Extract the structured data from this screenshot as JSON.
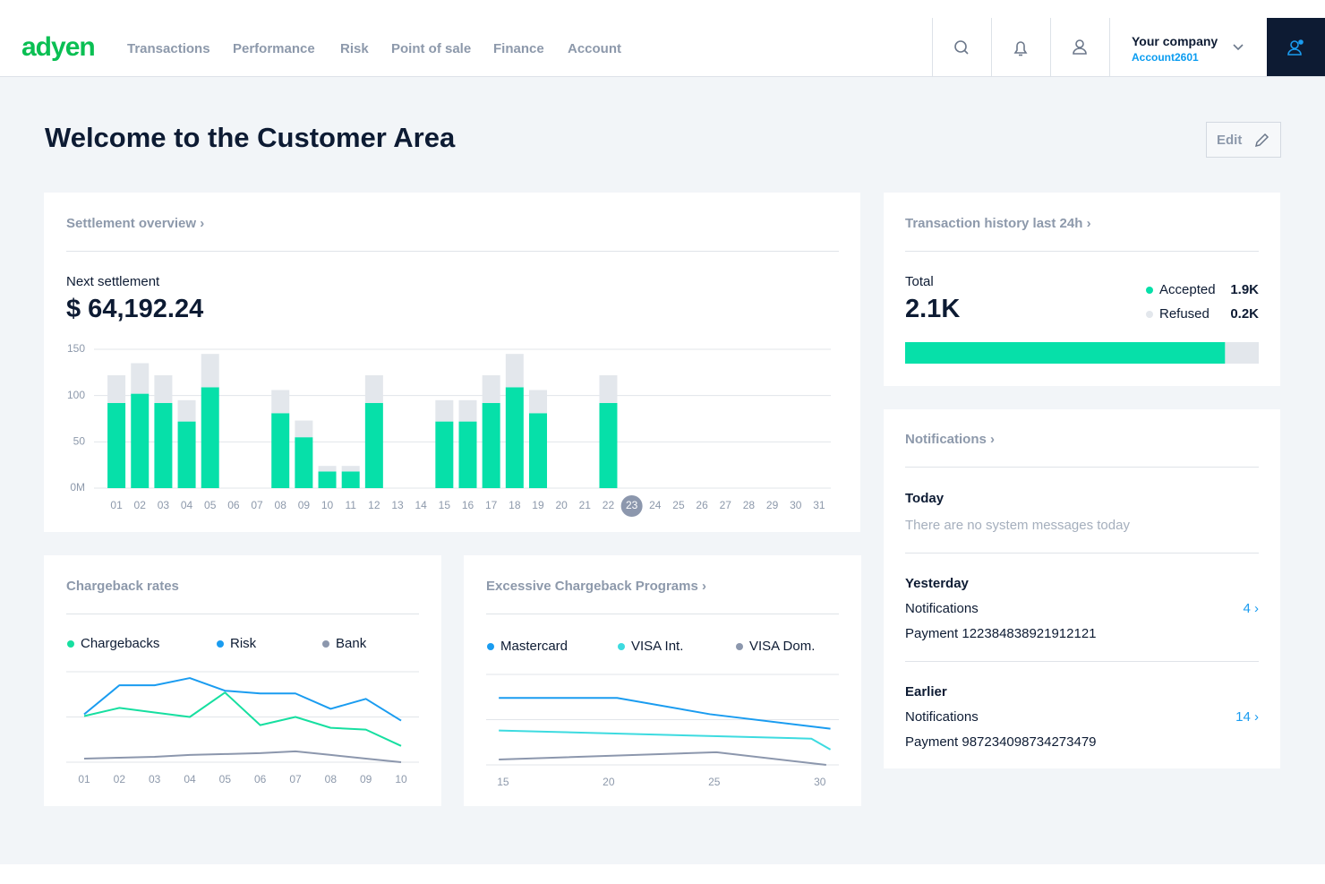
{
  "nav": {
    "logo": "adyen",
    "items": [
      "Transactions",
      "Performance",
      "Risk",
      "Point of sale",
      "Finance",
      "Account"
    ],
    "company": "Your company",
    "account": "Account2601"
  },
  "page_title": "Welcome to the Customer Area",
  "edit_button": "Edit",
  "settlement": {
    "heading": "Settlement overview ›",
    "label": "Next settlement",
    "amount": "$ 64,192.24",
    "chart_data": {
      "type": "bar",
      "categories": [
        "01",
        "02",
        "03",
        "04",
        "05",
        "06",
        "07",
        "08",
        "09",
        "10",
        "11",
        "12",
        "13",
        "14",
        "15",
        "16",
        "17",
        "18",
        "19",
        "20",
        "21",
        "22",
        "23",
        "24",
        "25",
        "26",
        "27",
        "28",
        "29",
        "30",
        "31"
      ],
      "series": [
        {
          "color": "#06e0a9",
          "values": [
            92,
            102,
            92,
            72,
            109,
            0,
            0,
            81,
            55,
            18,
            18,
            92,
            0,
            0,
            72,
            72,
            92,
            109,
            81,
            0,
            0,
            92,
            0,
            0,
            0,
            0,
            0,
            0,
            0,
            0,
            0
          ]
        },
        {
          "color": "#e3e7ec",
          "values": [
            30,
            33,
            30,
            23,
            36,
            0,
            0,
            25,
            18,
            6,
            6,
            30,
            0,
            0,
            23,
            23,
            30,
            36,
            25,
            0,
            0,
            30,
            0,
            0,
            0,
            0,
            0,
            0,
            0,
            0,
            0
          ]
        }
      ],
      "ylim": [
        0,
        150
      ],
      "yticks": [
        {
          "value": 0,
          "label": "0M"
        },
        50,
        100,
        150
      ],
      "grid": true,
      "highlight": 22,
      "highlight_color": "#8c97ad"
    }
  },
  "transactions": {
    "heading": "Transaction history last 24h ›",
    "total_label": "Total",
    "total": "2.1K",
    "chart_data": {
      "type": "stacked-bar-horizontal",
      "categories": [
        "Accepted",
        "Refused"
      ],
      "values": [
        1.9,
        0.2
      ],
      "value_labels": [
        "1.9K",
        "0.2K"
      ],
      "colors": [
        "#06e0a9",
        "#e3e7ec"
      ]
    }
  },
  "notifications": {
    "heading": "Notifications ›",
    "sections": [
      {
        "title": "Today",
        "message": "There are no system messages today"
      },
      {
        "title": "Yesterday",
        "label": "Notifications",
        "count": "4 ›",
        "payment": "Payment 122384838921912121"
      },
      {
        "title": "Earlier",
        "label": "Notifications",
        "count": "14 ›",
        "payment": "Payment 987234098734273479"
      }
    ]
  },
  "chargeback_rates": {
    "heading": "Chargeback rates",
    "chart_data": {
      "type": "line",
      "categories": [
        "01",
        "02",
        "03",
        "04",
        "05",
        "06",
        "07",
        "08",
        "09",
        "10"
      ],
      "series": [
        {
          "name": "Chargebacks",
          "color": "#16dfa0",
          "values": [
            51,
            60,
            55,
            50,
            77,
            41,
            50,
            38,
            36,
            18
          ]
        },
        {
          "name": "Risk",
          "color": "#1a9cf0",
          "values": [
            53,
            85,
            85,
            93,
            79,
            76,
            76,
            59,
            70,
            46
          ]
        },
        {
          "name": "Bank",
          "color": "#8c97ad",
          "values": [
            4,
            5,
            6,
            8,
            9,
            10,
            12,
            8,
            4,
            0
          ]
        }
      ],
      "ylim": [
        0,
        100
      ],
      "grid": [
        0,
        50,
        100
      ]
    }
  },
  "excessive_chargeback": {
    "heading": "Excessive Chargeback Programs ›",
    "chart_data": {
      "type": "line",
      "xlim": [
        14.2,
        30.9
      ],
      "xticks": [
        15,
        20,
        25,
        30
      ],
      "series": [
        {
          "name": "Mastercard",
          "color": "#1a9cf0",
          "x": [
            14.8,
            20.4,
            24.8,
            30.5
          ],
          "values": [
            74,
            74,
            56,
            40
          ]
        },
        {
          "name": "VISA Int.",
          "color": "#3ddbe0",
          "x": [
            14.8,
            29.6,
            30.5
          ],
          "values": [
            38,
            29,
            17
          ]
        },
        {
          "name": "VISA Dom.",
          "color": "#8c97ad",
          "x": [
            14.8,
            25.1,
            30.3
          ],
          "values": [
            6,
            14,
            0
          ]
        }
      ],
      "ylim": [
        0,
        100
      ],
      "grid": [
        0,
        50,
        100
      ]
    }
  }
}
